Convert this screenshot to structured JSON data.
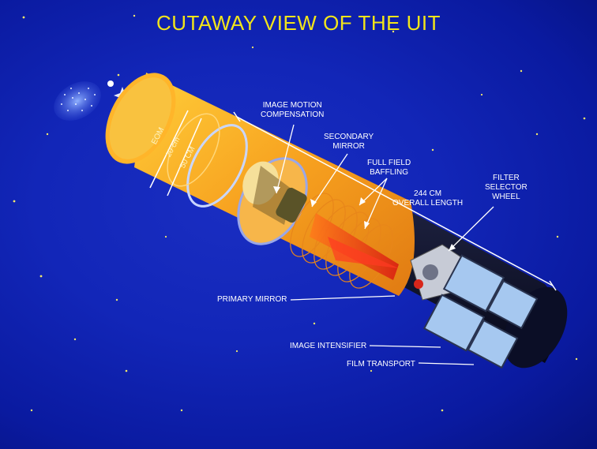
{
  "title": "CUTAWAY VIEW OF THE UIT",
  "labels": {
    "image_motion_compensation": [
      "IMAGE MOTION",
      "COMPENSATION"
    ],
    "secondary_mirror": [
      "SECONDARY",
      "MIRROR"
    ],
    "full_field_baffling": [
      "FULL FIELD",
      "BAFFLING"
    ],
    "overall_length": [
      "244 CM",
      "OVERALL LENGTH"
    ],
    "filter_selector_wheel": [
      "FILTER",
      "SELECTOR",
      "WHEEL"
    ],
    "primary_mirror": "PRIMARY MIRROR",
    "image_intensifier": "IMAGE INTENSIFIER",
    "film_transport": "FILM TRANSPORT",
    "aperture_label": "EOM",
    "dimension_20": "20 cm",
    "dimension_50": "50 CM"
  },
  "colors": {
    "background": "#1226b8",
    "title": "#f2e51a",
    "tube_orange": "#f7a11f",
    "tube_dark": "#101535",
    "baffle_red": "#e8261a",
    "mirror_yellow": "#f4d27a",
    "detector_blue": "#9fc4ee"
  }
}
